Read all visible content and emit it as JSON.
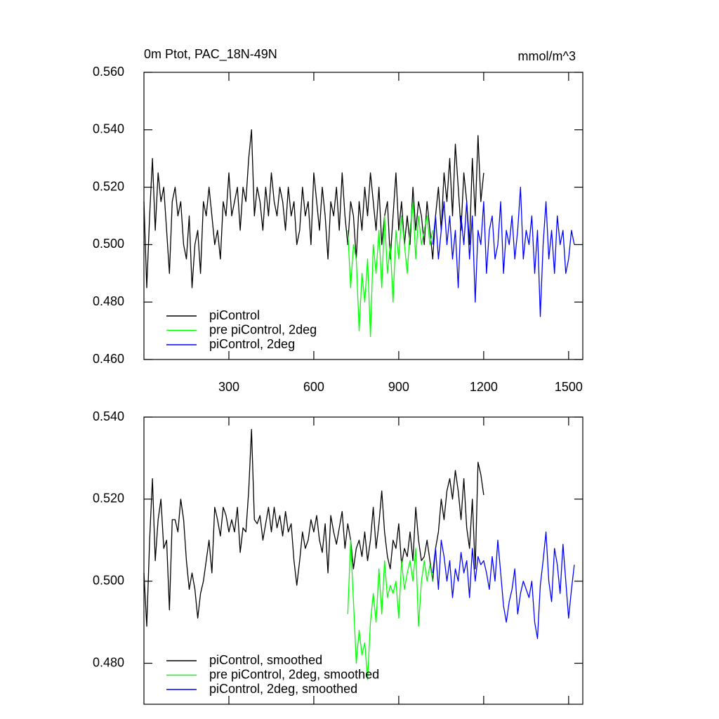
{
  "chart_data": [
    {
      "type": "line",
      "title": "0m Ptot, PAC_18N-49N",
      "units": "mmol/m^3",
      "xlim": [
        0,
        1550
      ],
      "xticks": [
        300,
        600,
        900,
        1200,
        1500
      ],
      "show_xtick_labels": true,
      "ylim": [
        0.46,
        0.56
      ],
      "yticks": [
        {
          "value": 0.46,
          "label": "0.460"
        },
        {
          "value": 0.48,
          "label": "0.480"
        },
        {
          "value": 0.5,
          "label": "0.500"
        },
        {
          "value": 0.52,
          "label": "0.520"
        },
        {
          "value": 0.54,
          "label": "0.540"
        },
        {
          "value": 0.56,
          "label": "0.560"
        }
      ],
      "legend": "lower left",
      "series": [
        {
          "name": "piControl",
          "color": "#000000",
          "x": [
            0,
            10,
            20,
            30,
            40,
            50,
            60,
            70,
            80,
            90,
            100,
            110,
            120,
            130,
            140,
            150,
            160,
            170,
            180,
            190,
            200,
            210,
            220,
            230,
            240,
            250,
            260,
            270,
            280,
            290,
            300,
            310,
            320,
            330,
            340,
            350,
            360,
            370,
            380,
            390,
            400,
            410,
            420,
            430,
            440,
            450,
            460,
            470,
            480,
            490,
            500,
            510,
            520,
            530,
            540,
            550,
            560,
            570,
            580,
            590,
            600,
            610,
            620,
            630,
            640,
            650,
            660,
            670,
            680,
            690,
            700,
            710,
            720,
            730,
            740,
            750,
            760,
            770,
            780,
            790,
            800,
            810,
            820,
            830,
            840,
            850,
            860,
            870,
            880,
            890,
            900,
            910,
            920,
            930,
            940,
            950,
            960,
            970,
            980,
            990,
            1000,
            1010,
            1020,
            1030,
            1040,
            1050,
            1060,
            1070,
            1080,
            1090,
            1100,
            1110,
            1120,
            1130,
            1140,
            1150,
            1160,
            1170,
            1180,
            1190,
            1200
          ],
          "values": [
            0.515,
            0.485,
            0.51,
            0.53,
            0.505,
            0.525,
            0.515,
            0.52,
            0.505,
            0.49,
            0.515,
            0.52,
            0.51,
            0.515,
            0.5,
            0.495,
            0.51,
            0.485,
            0.5,
            0.505,
            0.49,
            0.515,
            0.51,
            0.52,
            0.51,
            0.5,
            0.505,
            0.495,
            0.515,
            0.51,
            0.525,
            0.51,
            0.515,
            0.52,
            0.505,
            0.52,
            0.515,
            0.53,
            0.54,
            0.51,
            0.52,
            0.515,
            0.505,
            0.52,
            0.51,
            0.525,
            0.515,
            0.51,
            0.52,
            0.515,
            0.505,
            0.52,
            0.51,
            0.515,
            0.5,
            0.505,
            0.52,
            0.51,
            0.515,
            0.5,
            0.525,
            0.515,
            0.505,
            0.52,
            0.51,
            0.495,
            0.515,
            0.51,
            0.52,
            0.505,
            0.525,
            0.51,
            0.5,
            0.515,
            0.51,
            0.495,
            0.515,
            0.505,
            0.52,
            0.51,
            0.525,
            0.515,
            0.505,
            0.52,
            0.5,
            0.51,
            0.515,
            0.495,
            0.51,
            0.525,
            0.505,
            0.515,
            0.5,
            0.51,
            0.5,
            0.52,
            0.505,
            0.515,
            0.51,
            0.5,
            0.515,
            0.505,
            0.495,
            0.51,
            0.52,
            0.505,
            0.525,
            0.515,
            0.53,
            0.51,
            0.535,
            0.52,
            0.505,
            0.525,
            0.515,
            0.5,
            0.53,
            0.51,
            0.538,
            0.515,
            0.525
          ]
        },
        {
          "name": "pre piControl, 2deg",
          "color": "#00ff00",
          "x": [
            720,
            730,
            740,
            750,
            760,
            770,
            780,
            790,
            800,
            810,
            820,
            830,
            840,
            850,
            860,
            870,
            880,
            890,
            900,
            910,
            920,
            930,
            940,
            950,
            960,
            970,
            980,
            990,
            1000,
            1010,
            1020
          ],
          "values": [
            0.505,
            0.485,
            0.5,
            0.495,
            0.47,
            0.49,
            0.48,
            0.495,
            0.468,
            0.5,
            0.49,
            0.505,
            0.485,
            0.51,
            0.49,
            0.5,
            0.48,
            0.505,
            0.495,
            0.51,
            0.5,
            0.49,
            0.505,
            0.515,
            0.495,
            0.51,
            0.5,
            0.505,
            0.51,
            0.5,
            0.505
          ]
        },
        {
          "name": "piControl, 2deg",
          "color": "#0000ff",
          "x": [
            1020,
            1030,
            1040,
            1050,
            1060,
            1070,
            1080,
            1090,
            1100,
            1110,
            1120,
            1130,
            1140,
            1150,
            1160,
            1170,
            1180,
            1190,
            1200,
            1210,
            1220,
            1230,
            1240,
            1250,
            1260,
            1270,
            1280,
            1290,
            1300,
            1310,
            1320,
            1330,
            1340,
            1350,
            1360,
            1370,
            1380,
            1390,
            1400,
            1410,
            1420,
            1430,
            1440,
            1450,
            1460,
            1470,
            1480,
            1490,
            1500,
            1510,
            1520
          ],
          "values": [
            0.5,
            0.51,
            0.495,
            0.505,
            0.515,
            0.5,
            0.51,
            0.495,
            0.505,
            0.485,
            0.51,
            0.5,
            0.515,
            0.495,
            0.51,
            0.48,
            0.505,
            0.5,
            0.515,
            0.49,
            0.505,
            0.51,
            0.495,
            0.5,
            0.515,
            0.49,
            0.505,
            0.5,
            0.51,
            0.495,
            0.505,
            0.52,
            0.495,
            0.505,
            0.5,
            0.51,
            0.49,
            0.505,
            0.475,
            0.5,
            0.515,
            0.495,
            0.505,
            0.49,
            0.51,
            0.5,
            0.505,
            0.49,
            0.495,
            0.505,
            0.5
          ]
        }
      ]
    },
    {
      "type": "line",
      "xlim": [
        0,
        1550
      ],
      "xticks": [
        300,
        600,
        900,
        1200,
        1500
      ],
      "show_xtick_labels": false,
      "ylim": [
        0.47,
        0.54
      ],
      "yticks": [
        {
          "value": 0.48,
          "label": "0.480"
        },
        {
          "value": 0.5,
          "label": "0.500"
        },
        {
          "value": 0.52,
          "label": "0.520"
        },
        {
          "value": 0.54,
          "label": "0.540"
        }
      ],
      "legend": "lower left",
      "series": [
        {
          "name": "piControl, smoothed",
          "color": "#000000",
          "x": [
            0,
            10,
            20,
            30,
            40,
            50,
            60,
            70,
            80,
            90,
            100,
            110,
            120,
            130,
            140,
            150,
            160,
            170,
            180,
            190,
            200,
            210,
            220,
            230,
            240,
            250,
            260,
            270,
            280,
            290,
            300,
            310,
            320,
            330,
            340,
            350,
            360,
            370,
            380,
            390,
            400,
            410,
            420,
            430,
            440,
            450,
            460,
            470,
            480,
            490,
            500,
            510,
            520,
            530,
            540,
            550,
            560,
            570,
            580,
            590,
            600,
            610,
            620,
            630,
            640,
            650,
            660,
            670,
            680,
            690,
            700,
            710,
            720,
            730,
            740,
            750,
            760,
            770,
            780,
            790,
            800,
            810,
            820,
            830,
            840,
            850,
            860,
            870,
            880,
            890,
            900,
            910,
            920,
            930,
            940,
            950,
            960,
            970,
            980,
            990,
            1000,
            1010,
            1020,
            1030,
            1040,
            1050,
            1060,
            1070,
            1080,
            1090,
            1100,
            1110,
            1120,
            1130,
            1140,
            1150,
            1160,
            1170,
            1180,
            1190,
            1200
          ],
          "values": [
            0.502,
            0.489,
            0.51,
            0.525,
            0.505,
            0.515,
            0.52,
            0.508,
            0.51,
            0.493,
            0.515,
            0.515,
            0.512,
            0.52,
            0.515,
            0.505,
            0.498,
            0.502,
            0.498,
            0.491,
            0.497,
            0.5,
            0.505,
            0.51,
            0.502,
            0.518,
            0.515,
            0.511,
            0.518,
            0.516,
            0.512,
            0.515,
            0.512,
            0.518,
            0.507,
            0.513,
            0.512,
            0.522,
            0.537,
            0.515,
            0.514,
            0.516,
            0.51,
            0.514,
            0.518,
            0.512,
            0.518,
            0.513,
            0.516,
            0.511,
            0.517,
            0.512,
            0.514,
            0.505,
            0.499,
            0.505,
            0.512,
            0.508,
            0.51,
            0.515,
            0.512,
            0.516,
            0.51,
            0.507,
            0.514,
            0.502,
            0.516,
            0.512,
            0.509,
            0.513,
            0.517,
            0.508,
            0.514,
            0.51,
            0.503,
            0.508,
            0.51,
            0.506,
            0.512,
            0.505,
            0.51,
            0.518,
            0.508,
            0.514,
            0.522,
            0.512,
            0.506,
            0.503,
            0.51,
            0.508,
            0.514,
            0.504,
            0.508,
            0.506,
            0.512,
            0.505,
            0.518,
            0.51,
            0.505,
            0.506,
            0.51,
            0.505,
            0.5,
            0.508,
            0.512,
            0.52,
            0.515,
            0.522,
            0.525,
            0.52,
            0.527,
            0.522,
            0.515,
            0.525,
            0.513,
            0.508,
            0.52,
            0.503,
            0.529,
            0.526,
            0.521
          ]
        },
        {
          "name": "pre piControl, 2deg, smoothed",
          "color": "#00ff00",
          "x": [
            720,
            730,
            740,
            750,
            760,
            770,
            780,
            790,
            800,
            810,
            820,
            830,
            840,
            850,
            860,
            870,
            880,
            890,
            900,
            910,
            920,
            930,
            940,
            950,
            960,
            970,
            980,
            990,
            1000,
            1010,
            1020
          ],
          "values": [
            0.492,
            0.51,
            0.495,
            0.48,
            0.488,
            0.482,
            0.485,
            0.476,
            0.49,
            0.497,
            0.49,
            0.503,
            0.492,
            0.505,
            0.496,
            0.499,
            0.497,
            0.5,
            0.491,
            0.505,
            0.498,
            0.502,
            0.505,
            0.5,
            0.508,
            0.489,
            0.5,
            0.505,
            0.5,
            0.504,
            0.5
          ]
        },
        {
          "name": "piControl, 2deg, smoothed",
          "color": "#0000ff",
          "x": [
            1020,
            1030,
            1040,
            1050,
            1060,
            1070,
            1080,
            1090,
            1100,
            1110,
            1120,
            1130,
            1140,
            1150,
            1160,
            1170,
            1180,
            1190,
            1200,
            1210,
            1220,
            1230,
            1240,
            1250,
            1260,
            1270,
            1280,
            1290,
            1300,
            1310,
            1320,
            1330,
            1340,
            1350,
            1360,
            1370,
            1380,
            1390,
            1400,
            1410,
            1420,
            1430,
            1440,
            1450,
            1460,
            1470,
            1480,
            1490,
            1500,
            1510,
            1520
          ],
          "values": [
            0.502,
            0.508,
            0.498,
            0.51,
            0.506,
            0.5,
            0.505,
            0.496,
            0.503,
            0.5,
            0.507,
            0.502,
            0.505,
            0.496,
            0.508,
            0.5,
            0.506,
            0.504,
            0.505,
            0.502,
            0.498,
            0.506,
            0.5,
            0.51,
            0.502,
            0.494,
            0.49,
            0.495,
            0.498,
            0.503,
            0.492,
            0.497,
            0.5,
            0.498,
            0.496,
            0.5,
            0.49,
            0.486,
            0.499,
            0.505,
            0.512,
            0.5,
            0.495,
            0.508,
            0.504,
            0.497,
            0.509,
            0.5,
            0.491,
            0.498,
            0.504
          ]
        }
      ]
    }
  ]
}
